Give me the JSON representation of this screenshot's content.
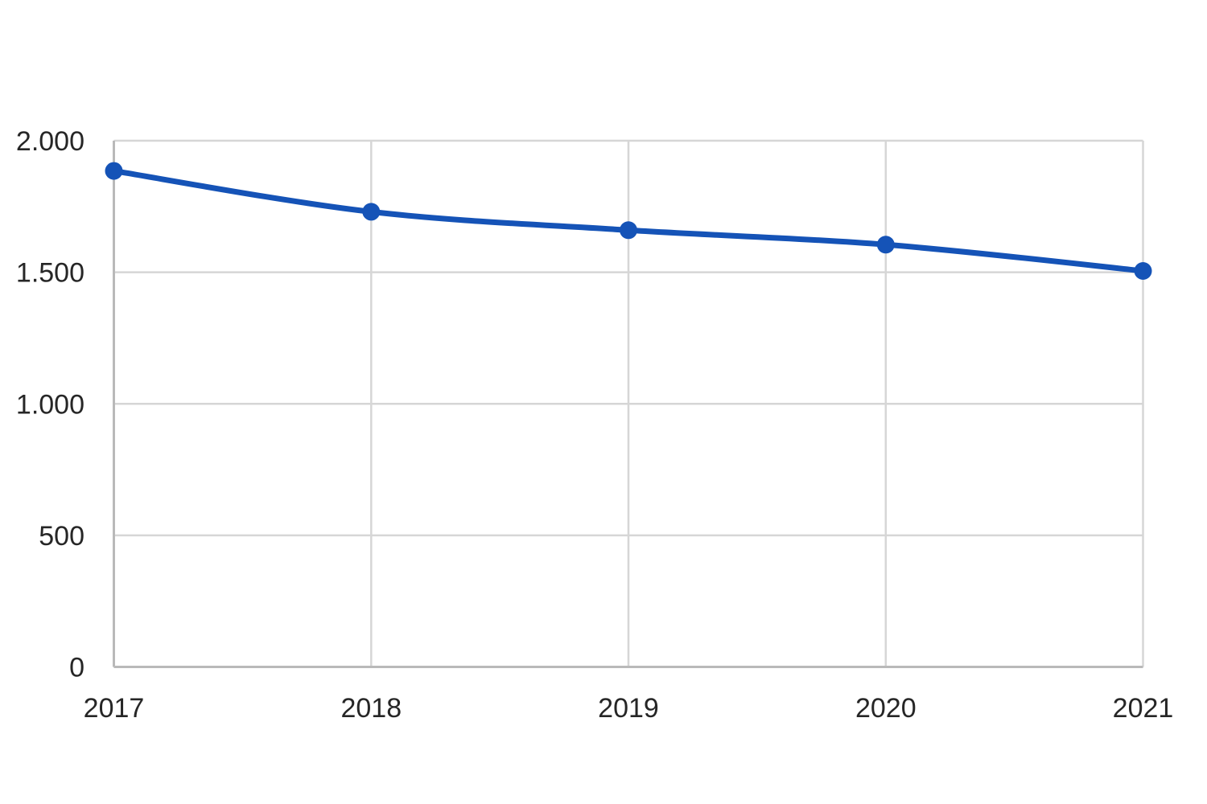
{
  "chart_data": {
    "type": "line",
    "title": "",
    "xlabel": "",
    "ylabel": "",
    "categories": [
      "2017",
      "2018",
      "2019",
      "2020",
      "2021"
    ],
    "series": [
      {
        "name": "series-1",
        "values": [
          1885,
          1730,
          1660,
          1605,
          1505
        ]
      }
    ],
    "y_ticks": [
      {
        "value": 0,
        "label": "0"
      },
      {
        "value": 500,
        "label": "500"
      },
      {
        "value": 1000,
        "label": "1.000"
      },
      {
        "value": 1500,
        "label": "1.500"
      },
      {
        "value": 2000,
        "label": "2.000"
      }
    ],
    "ylim": [
      0,
      2000
    ],
    "grid": true,
    "legend": "none",
    "smooth": true,
    "marker": "circle",
    "colors": {
      "line": "#1553B7",
      "marker": "#1553B7",
      "gridline": "#d6d6d6",
      "axis": "#b9b9b9",
      "text": "#262626",
      "background": "#ffffff"
    }
  }
}
